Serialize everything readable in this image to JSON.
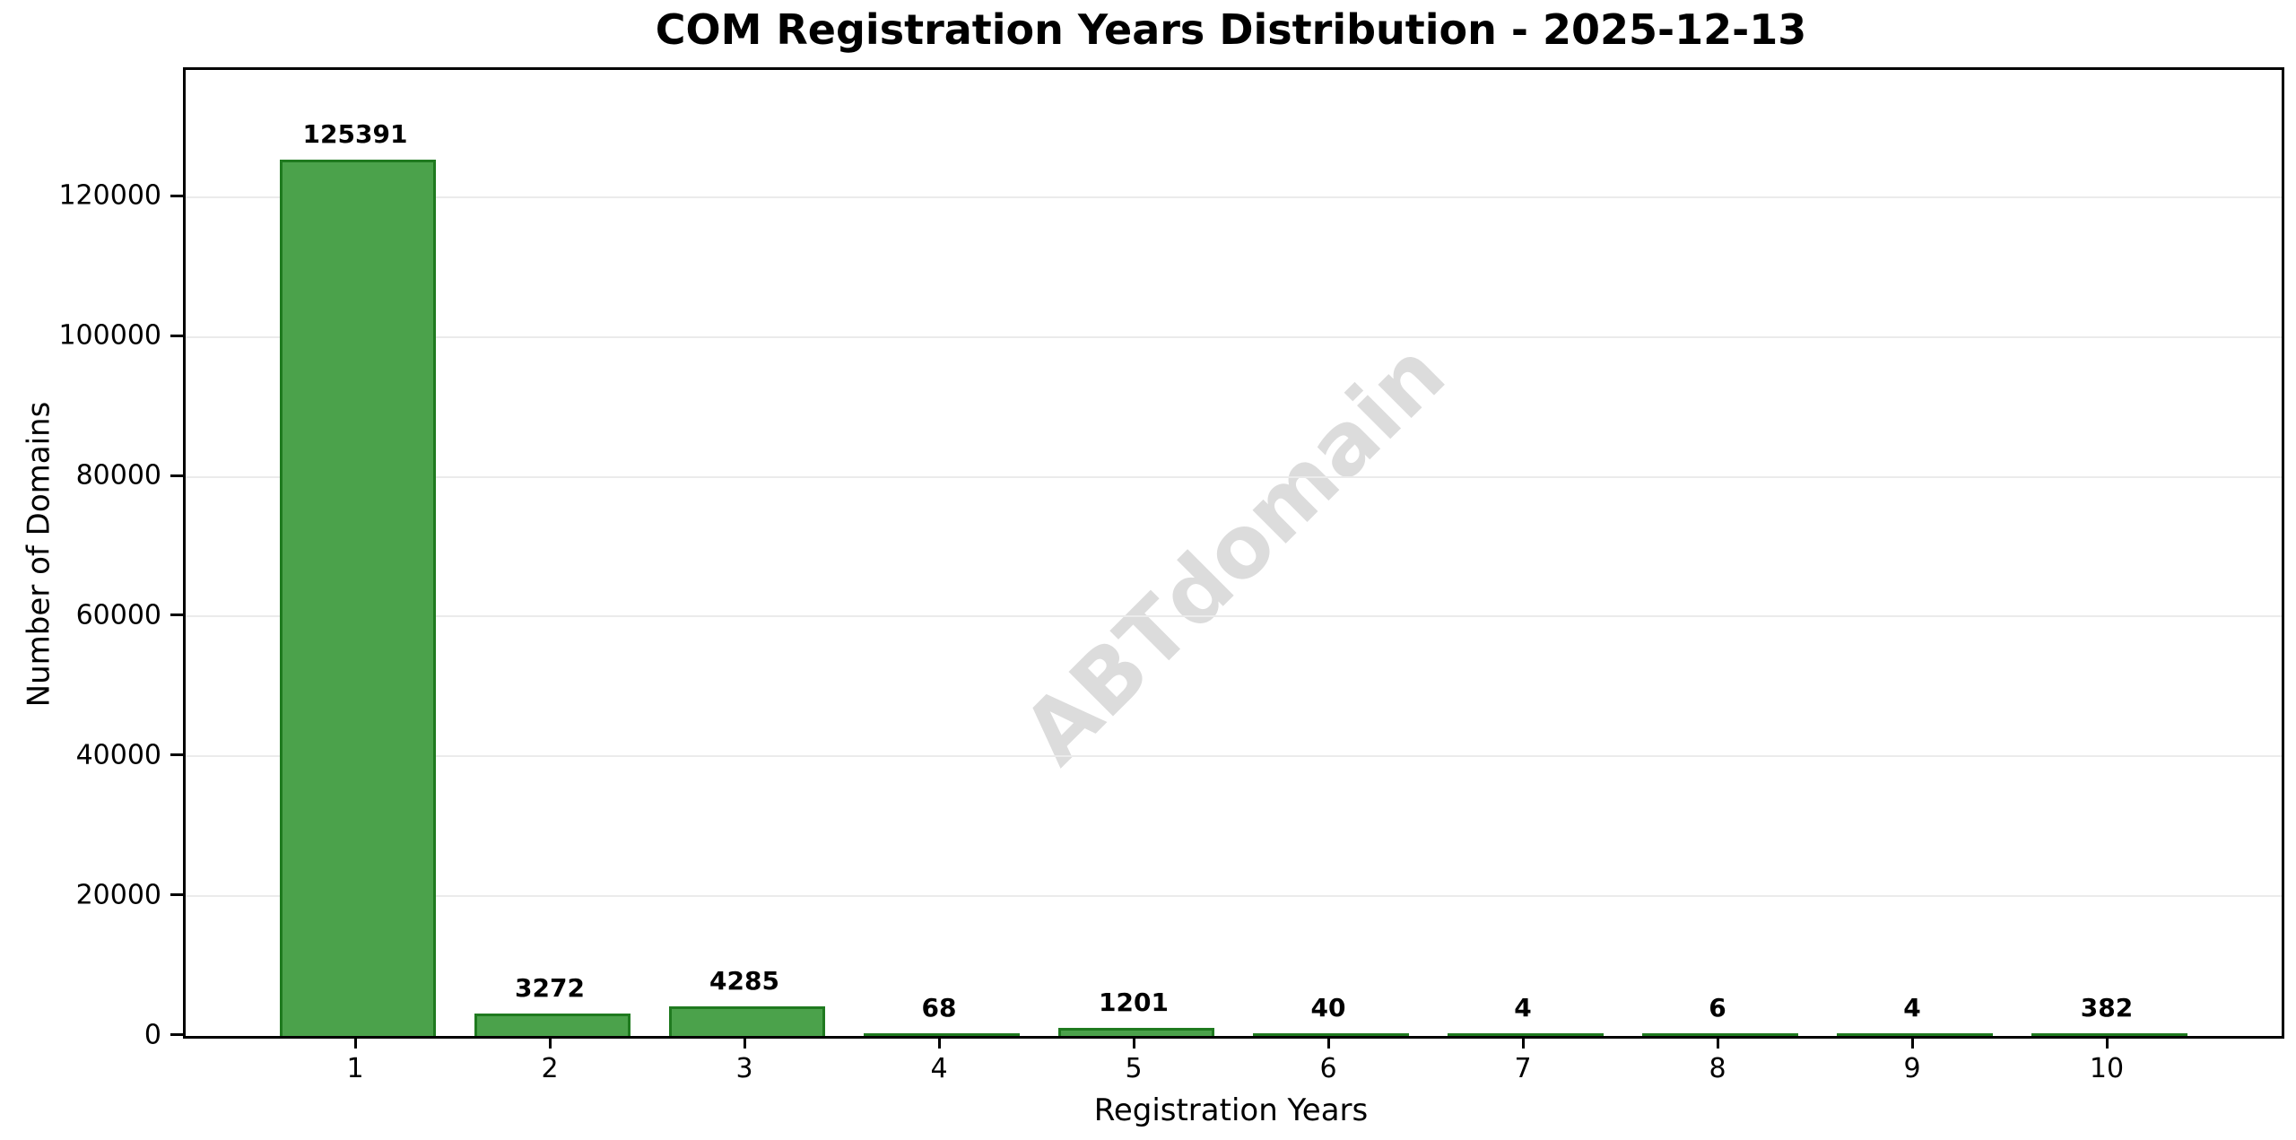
{
  "chart_data": {
    "type": "bar",
    "title": "COM Registration Years Distribution - 2025-12-13",
    "xlabel": "Registration Years",
    "ylabel": "Number of Domains",
    "categories": [
      "1",
      "2",
      "3",
      "4",
      "5",
      "6",
      "7",
      "8",
      "9",
      "10"
    ],
    "values": [
      125391,
      3272,
      4285,
      68,
      1201,
      40,
      4,
      6,
      4,
      382
    ],
    "value_labels": [
      "125391",
      "3272",
      "4285",
      "68",
      "1201",
      "40",
      "4",
      "6",
      "4",
      "382"
    ],
    "yticks": [
      0,
      20000,
      40000,
      60000,
      80000,
      100000,
      120000
    ],
    "ytick_labels": [
      "0",
      "20000",
      "40000",
      "60000",
      "80000",
      "100000",
      "120000"
    ],
    "ylim": [
      0,
      138200
    ],
    "grid": "horizontal-only",
    "legend": "none",
    "watermark": "ABTdomain",
    "colors": {
      "bar_fill": "#4ba24b",
      "bar_edge": "#1f7a1f",
      "grid": "#ebebeb",
      "axis": "#000000",
      "text": "#000000",
      "watermark": "#dcdcdc",
      "background": "#ffffff"
    }
  }
}
